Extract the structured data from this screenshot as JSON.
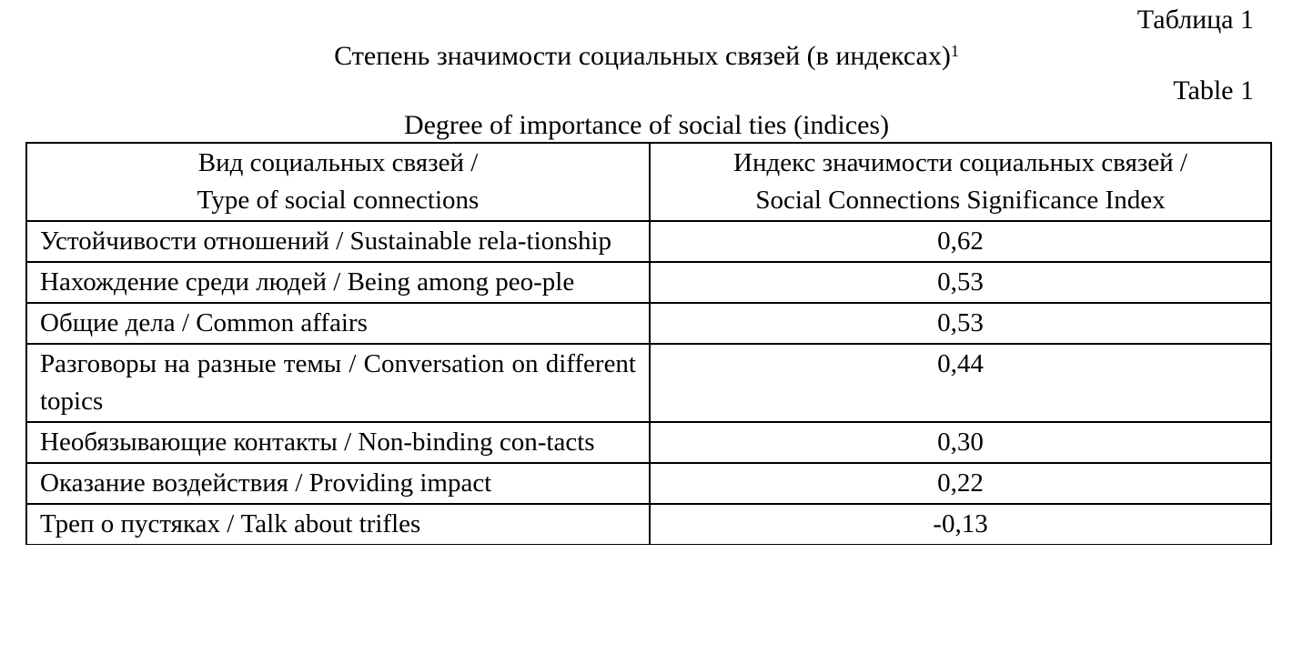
{
  "header": {
    "table_label_ru": "Таблица 1",
    "title_ru": "Степень значимости социальных связей (в индексах)",
    "title_ru_footnote": "1",
    "table_label_en": "Table 1",
    "title_en": "Degree of importance of social ties (indices)"
  },
  "table": {
    "columns": [
      {
        "line1": "Вид социальных связей /",
        "line2": "Type of social connections"
      },
      {
        "line1": "Индекс значимости социальных связей /",
        "line2": "Social Connections Significance Index"
      }
    ],
    "rows": [
      {
        "type": "Устойчивости отношений / Sustainable rela-tionship",
        "index": "0,62"
      },
      {
        "type": "Нахождение среди людей / Being among peo-ple",
        "index": "0,53"
      },
      {
        "type": "Общие дела / Common affairs",
        "index": "0,53"
      },
      {
        "type": "Разговоры на разные темы / Conversation on different topics",
        "index": "0,44"
      },
      {
        "type": "Необязывающие контакты / Non-binding con-tacts",
        "index": "0,30"
      },
      {
        "type": "Оказание воздействия / Providing impact",
        "index": "0,22"
      },
      {
        "type": "Треп о пустяках / Talk about trifles",
        "index": "-0,13"
      }
    ]
  }
}
